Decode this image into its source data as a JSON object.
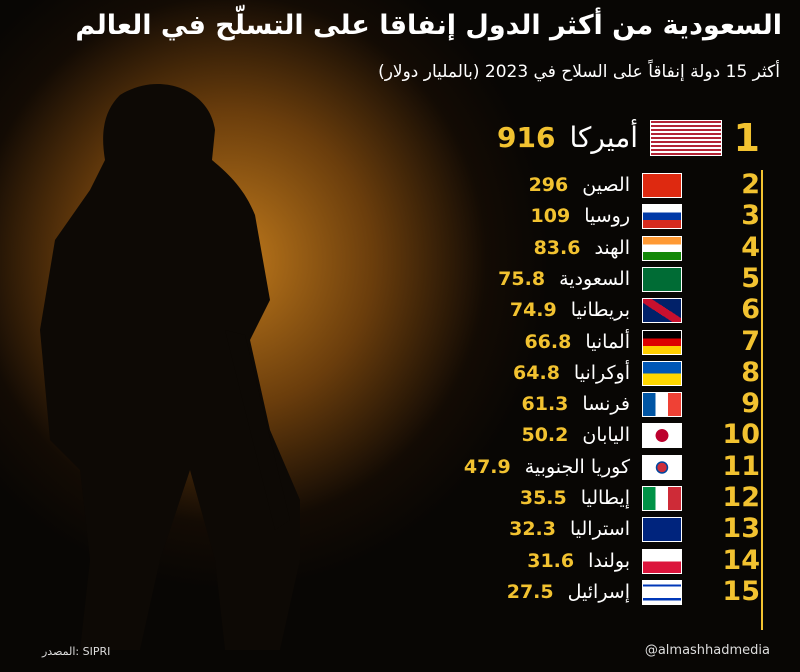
{
  "header": {
    "title": "السعودية من أكثر الدول إنفاقا على التسلّح في العالم",
    "subtitle": "أكثر 15 دولة إنفاقاً على السلاح في 2023 (بالمليار دولار)"
  },
  "rows": [
    {
      "rank": 1,
      "country": "أميركا",
      "value": 916
    },
    {
      "rank": 2,
      "country": "الصين",
      "value": 296
    },
    {
      "rank": 3,
      "country": "روسيا",
      "value": 109
    },
    {
      "rank": 4,
      "country": "الهند",
      "value": 83.6
    },
    {
      "rank": 5,
      "country": "السعودية",
      "value": 75.8
    },
    {
      "rank": 6,
      "country": "بريطانيا",
      "value": 74.9
    },
    {
      "rank": 7,
      "country": "ألمانيا",
      "value": 66.8
    },
    {
      "rank": 8,
      "country": "أوكرانيا",
      "value": 64.8
    },
    {
      "rank": 9,
      "country": "فرنسا",
      "value": 61.3
    },
    {
      "rank": 10,
      "country": "اليابان",
      "value": 50.2
    },
    {
      "rank": 11,
      "country": "كوريا الجنوبية",
      "value": 47.9
    },
    {
      "rank": 12,
      "country": "إيطاليا",
      "value": 35.5
    },
    {
      "rank": 13,
      "country": "استراليا",
      "value": 32.3
    },
    {
      "rank": 14,
      "country": "بولندا",
      "value": 31.6
    },
    {
      "rank": 15,
      "country": "إسرائيل",
      "value": 27.5
    }
  ],
  "footer": {
    "source": "المصدر: SIPRI",
    "handle": "@almashhadmedia"
  }
}
